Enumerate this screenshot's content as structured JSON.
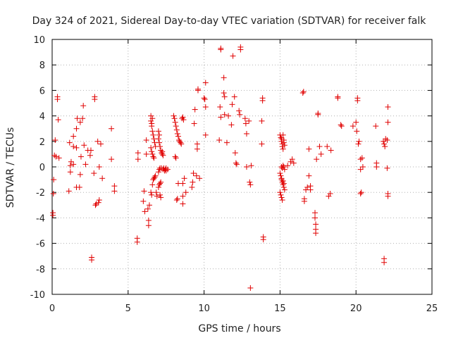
{
  "chart_data": {
    "type": "scatter",
    "title": "Day 324 of 2021, Sidereal Day-to-day VTEC variation (SDTVAR) for receiver falk",
    "xlabel": "GPS time / hours",
    "ylabel": "SDTVAR / TECUs",
    "xlim": [
      0,
      25
    ],
    "ylim": [
      -10,
      10
    ],
    "xticks": [
      0,
      5,
      10,
      15,
      20,
      25
    ],
    "yticks": [
      -10,
      -8,
      -6,
      -4,
      -2,
      0,
      2,
      4,
      6,
      8,
      10
    ],
    "grid": true,
    "marker": "plus",
    "color": "#e00000",
    "points": [
      [
        0.05,
        -3.8
      ],
      [
        0.05,
        -3.6
      ],
      [
        0.08,
        -2.1
      ],
      [
        0.1,
        -1.0
      ],
      [
        0.15,
        0.9
      ],
      [
        0.2,
        2.1
      ],
      [
        0.25,
        0.8
      ],
      [
        0.35,
        5.5
      ],
      [
        0.35,
        5.3
      ],
      [
        0.4,
        3.7
      ],
      [
        0.45,
        0.7
      ],
      [
        1.1,
        -1.9
      ],
      [
        1.15,
        1.9
      ],
      [
        1.2,
        -0.4
      ],
      [
        1.2,
        0.1
      ],
      [
        1.25,
        0.4
      ],
      [
        1.4,
        1.6
      ],
      [
        1.4,
        0.2
      ],
      [
        1.4,
        2.4
      ],
      [
        1.6,
        -1.6
      ],
      [
        1.6,
        1.5
      ],
      [
        1.6,
        3.0
      ],
      [
        1.65,
        3.8
      ],
      [
        1.8,
        -1.6
      ],
      [
        1.85,
        -0.6
      ],
      [
        1.85,
        3.5
      ],
      [
        1.9,
        0.8
      ],
      [
        2.0,
        3.8
      ],
      [
        2.05,
        4.8
      ],
      [
        2.1,
        1.7
      ],
      [
        2.2,
        0.2
      ],
      [
        2.35,
        1.3
      ],
      [
        2.5,
        0.9
      ],
      [
        2.55,
        1.3
      ],
      [
        2.6,
        -7.1
      ],
      [
        2.6,
        -7.3
      ],
      [
        2.75,
        -0.5
      ],
      [
        2.8,
        5.5
      ],
      [
        2.8,
        5.3
      ],
      [
        2.85,
        -3.0
      ],
      [
        2.9,
        -2.9
      ],
      [
        3.0,
        2.0
      ],
      [
        3.05,
        -2.8
      ],
      [
        3.1,
        -2.6
      ],
      [
        3.1,
        0.0
      ],
      [
        3.2,
        1.8
      ],
      [
        3.3,
        -0.9
      ],
      [
        3.9,
        0.6
      ],
      [
        3.9,
        3.0
      ],
      [
        4.1,
        -1.9
      ],
      [
        4.1,
        -1.5
      ],
      [
        5.6,
        -5.6
      ],
      [
        5.6,
        -5.9
      ],
      [
        5.65,
        1.1
      ],
      [
        5.65,
        0.6
      ],
      [
        6.0,
        -2.7
      ],
      [
        6.05,
        -1.9
      ],
      [
        6.1,
        -3.5
      ],
      [
        6.2,
        2.1
      ],
      [
        6.2,
        1.0
      ],
      [
        6.3,
        -3.3
      ],
      [
        6.35,
        -4.2
      ],
      [
        6.35,
        -4.6
      ],
      [
        6.4,
        -3.0
      ],
      [
        6.5,
        -2.0
      ],
      [
        6.55,
        -2.2
      ],
      [
        6.6,
        -1.4
      ],
      [
        6.65,
        -1.0
      ],
      [
        6.7,
        -0.9
      ],
      [
        6.75,
        -0.8
      ],
      [
        6.8,
        -0.7
      ],
      [
        6.85,
        -2.0
      ],
      [
        6.9,
        -2.3
      ],
      [
        6.5,
        1.5
      ],
      [
        6.55,
        1.2
      ],
      [
        6.6,
        1.0
      ],
      [
        6.65,
        0.8
      ],
      [
        6.7,
        0.7
      ],
      [
        6.5,
        4.0
      ],
      [
        6.5,
        3.6
      ],
      [
        6.55,
        3.2
      ],
      [
        6.6,
        2.8
      ],
      [
        6.65,
        2.5
      ],
      [
        6.7,
        2.2
      ],
      [
        6.75,
        1.9
      ],
      [
        6.8,
        1.6
      ],
      [
        6.6,
        3.8
      ],
      [
        6.55,
        3.4
      ],
      [
        7.0,
        -1.6
      ],
      [
        7.05,
        -1.4
      ],
      [
        7.1,
        -1.3
      ],
      [
        7.15,
        -1.2
      ],
      [
        7.0,
        -0.4
      ],
      [
        7.05,
        -0.2
      ],
      [
        7.1,
        -0.1
      ],
      [
        7.2,
        -0.1
      ],
      [
        7.3,
        -0.2
      ],
      [
        7.35,
        -0.1
      ],
      [
        7.4,
        -0.3
      ],
      [
        7.45,
        -0.2
      ],
      [
        7.5,
        -0.1
      ],
      [
        7.1,
        -2.2
      ],
      [
        7.15,
        -2.4
      ],
      [
        7.0,
        2.2
      ],
      [
        7.05,
        1.9
      ],
      [
        7.1,
        1.6
      ],
      [
        7.15,
        1.3
      ],
      [
        7.2,
        1.1
      ],
      [
        7.25,
        1.0
      ],
      [
        7.05,
        2.5
      ],
      [
        7.0,
        2.8
      ],
      [
        7.25,
        1.2
      ],
      [
        7.3,
        0.9
      ],
      [
        7.5,
        -0.3
      ],
      [
        7.6,
        -0.2
      ],
      [
        8.1,
        0.8
      ],
      [
        8.15,
        0.7
      ],
      [
        8.2,
        -2.6
      ],
      [
        8.25,
        -2.5
      ],
      [
        8.3,
        -1.3
      ],
      [
        8.0,
        4.0
      ],
      [
        8.05,
        3.8
      ],
      [
        8.1,
        3.5
      ],
      [
        8.15,
        3.2
      ],
      [
        8.2,
        2.9
      ],
      [
        8.25,
        2.6
      ],
      [
        8.3,
        2.4
      ],
      [
        8.35,
        2.1
      ],
      [
        8.4,
        2.0
      ],
      [
        8.45,
        1.9
      ],
      [
        8.5,
        1.8
      ],
      [
        8.55,
        3.8
      ],
      [
        8.6,
        3.9
      ],
      [
        8.65,
        3.7
      ],
      [
        8.6,
        -2.3
      ],
      [
        8.6,
        -2.9
      ],
      [
        8.7,
        -0.9
      ],
      [
        8.8,
        -2.0
      ],
      [
        8.6,
        -1.3
      ],
      [
        9.2,
        -1.6
      ],
      [
        9.25,
        -1.2
      ],
      [
        9.3,
        -0.5
      ],
      [
        9.35,
        3.4
      ],
      [
        9.4,
        4.5
      ],
      [
        9.5,
        -0.7
      ],
      [
        9.55,
        1.4
      ],
      [
        9.55,
        1.8
      ],
      [
        9.6,
        6.0
      ],
      [
        9.6,
        6.1
      ],
      [
        9.7,
        -0.9
      ],
      [
        10.0,
        5.4
      ],
      [
        10.05,
        5.3
      ],
      [
        10.1,
        4.7
      ],
      [
        10.1,
        2.5
      ],
      [
        10.1,
        6.6
      ],
      [
        11.0,
        2.1
      ],
      [
        11.05,
        4.7
      ],
      [
        11.1,
        3.9
      ],
      [
        11.1,
        9.3
      ],
      [
        11.1,
        9.2
      ],
      [
        11.3,
        7.0
      ],
      [
        11.3,
        5.8
      ],
      [
        11.35,
        5.5
      ],
      [
        11.35,
        4.1
      ],
      [
        11.5,
        1.9
      ],
      [
        11.6,
        4.0
      ],
      [
        11.8,
        3.3
      ],
      [
        11.85,
        4.9
      ],
      [
        11.9,
        8.7
      ],
      [
        12.0,
        5.5
      ],
      [
        12.05,
        1.1
      ],
      [
        12.1,
        0.3
      ],
      [
        12.15,
        0.2
      ],
      [
        12.3,
        4.4
      ],
      [
        12.35,
        4.1
      ],
      [
        12.4,
        9.4
      ],
      [
        12.4,
        9.2
      ],
      [
        12.7,
        3.8
      ],
      [
        12.75,
        3.4
      ],
      [
        12.8,
        2.6
      ],
      [
        12.8,
        0.0
      ],
      [
        12.95,
        3.6
      ],
      [
        13.0,
        -1.2
      ],
      [
        13.05,
        -1.4
      ],
      [
        13.05,
        -9.5
      ],
      [
        13.1,
        0.1
      ],
      [
        13.8,
        3.6
      ],
      [
        13.8,
        1.8
      ],
      [
        13.85,
        5.4
      ],
      [
        13.85,
        5.2
      ],
      [
        13.9,
        -5.5
      ],
      [
        13.9,
        -5.7
      ],
      [
        15.0,
        2.5
      ],
      [
        15.05,
        2.3
      ],
      [
        15.1,
        2.2
      ],
      [
        15.1,
        2.0
      ],
      [
        15.15,
        1.8
      ],
      [
        15.15,
        1.6
      ],
      [
        15.2,
        1.4
      ],
      [
        15.2,
        2.5
      ],
      [
        15.25,
        2.1
      ],
      [
        15.25,
        1.9
      ],
      [
        15.3,
        1.7
      ],
      [
        15.1,
        0.0
      ],
      [
        15.15,
        -0.1
      ],
      [
        15.2,
        0.1
      ],
      [
        15.25,
        0.0
      ],
      [
        15.3,
        -0.2
      ],
      [
        15.0,
        -0.5
      ],
      [
        15.05,
        -0.7
      ],
      [
        15.1,
        -0.9
      ],
      [
        15.15,
        -1.2
      ],
      [
        15.2,
        -1.4
      ],
      [
        15.25,
        -1.6
      ],
      [
        15.3,
        -1.8
      ],
      [
        15.0,
        -2.0
      ],
      [
        15.05,
        -2.2
      ],
      [
        15.1,
        -2.4
      ],
      [
        15.15,
        -2.6
      ],
      [
        15.2,
        -1.1
      ],
      [
        15.25,
        -1.3
      ],
      [
        15.1,
        -1.0
      ],
      [
        15.5,
        0.1
      ],
      [
        15.7,
        0.4
      ],
      [
        15.8,
        0.6
      ],
      [
        15.9,
        0.3
      ],
      [
        16.5,
        5.8
      ],
      [
        16.55,
        5.9
      ],
      [
        16.6,
        -2.5
      ],
      [
        16.6,
        -2.7
      ],
      [
        16.7,
        -1.8
      ],
      [
        16.8,
        -1.6
      ],
      [
        16.9,
        1.4
      ],
      [
        16.9,
        -0.7
      ],
      [
        17.0,
        -1.5
      ],
      [
        17.0,
        -1.8
      ],
      [
        17.3,
        -3.6
      ],
      [
        17.3,
        -4.0
      ],
      [
        17.35,
        -4.5
      ],
      [
        17.35,
        -4.9
      ],
      [
        17.35,
        -5.2
      ],
      [
        17.4,
        0.6
      ],
      [
        17.5,
        4.2
      ],
      [
        17.5,
        4.1
      ],
      [
        17.6,
        1.6
      ],
      [
        17.7,
        1.0
      ],
      [
        18.1,
        1.6
      ],
      [
        18.2,
        -2.3
      ],
      [
        18.3,
        -2.1
      ],
      [
        18.35,
        1.3
      ],
      [
        18.8,
        5.5
      ],
      [
        18.8,
        5.4
      ],
      [
        19.0,
        3.3
      ],
      [
        19.05,
        3.2
      ],
      [
        19.8,
        3.2
      ],
      [
        20.0,
        3.5
      ],
      [
        20.05,
        2.8
      ],
      [
        20.1,
        5.4
      ],
      [
        20.1,
        5.2
      ],
      [
        20.15,
        1.8
      ],
      [
        20.2,
        2.0
      ],
      [
        20.3,
        0.6
      ],
      [
        20.3,
        -0.2
      ],
      [
        20.4,
        0.7
      ],
      [
        20.45,
        0.0
      ],
      [
        20.3,
        -2.1
      ],
      [
        20.35,
        -2.0
      ],
      [
        21.3,
        3.2
      ],
      [
        21.35,
        0.0
      ],
      [
        21.35,
        0.3
      ],
      [
        21.8,
        2.0
      ],
      [
        21.85,
        1.8
      ],
      [
        21.9,
        1.6
      ],
      [
        21.85,
        -7.2
      ],
      [
        21.85,
        -7.5
      ],
      [
        21.95,
        2.2
      ],
      [
        22.05,
        2.1
      ],
      [
        22.05,
        -0.1
      ],
      [
        22.1,
        3.5
      ],
      [
        22.1,
        4.7
      ],
      [
        22.1,
        -2.1
      ],
      [
        22.1,
        -2.3
      ]
    ]
  }
}
